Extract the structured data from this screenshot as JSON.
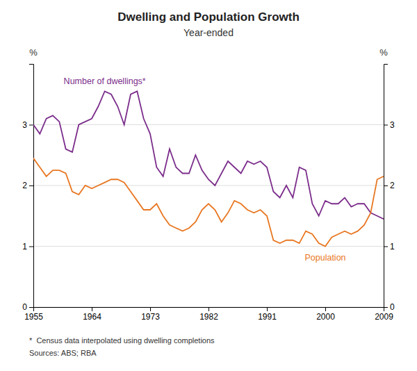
{
  "chart_data": {
    "type": "line",
    "title": "Dwelling and Population Growth",
    "subtitle": "Year-ended",
    "ylabel": "%",
    "y2label": "%",
    "footnotes": [
      "*  Census data interpolated using dwelling completions",
      "Sources: ABS; RBA"
    ],
    "x": [
      1955,
      1956,
      1957,
      1958,
      1959,
      1960,
      1961,
      1962,
      1963,
      1964,
      1965,
      1966,
      1967,
      1968,
      1969,
      1970,
      1971,
      1972,
      1973,
      1974,
      1975,
      1976,
      1977,
      1978,
      1979,
      1980,
      1981,
      1982,
      1983,
      1984,
      1985,
      1986,
      1987,
      1988,
      1989,
      1990,
      1991,
      1992,
      1993,
      1994,
      1995,
      1996,
      1997,
      1998,
      1999,
      2000,
      2001,
      2002,
      2003,
      2004,
      2005,
      2006,
      2007,
      2008,
      2009
    ],
    "series": [
      {
        "name": "Number of dwellings*",
        "color": "#7B2D8B",
        "values": [
          3.0,
          2.85,
          3.1,
          3.15,
          3.05,
          2.6,
          2.55,
          3.0,
          3.05,
          3.1,
          3.3,
          3.55,
          3.5,
          3.3,
          3.0,
          3.5,
          3.55,
          3.1,
          2.85,
          2.3,
          2.15,
          2.6,
          2.3,
          2.2,
          2.2,
          2.5,
          2.25,
          2.1,
          2.0,
          2.2,
          2.4,
          2.3,
          2.2,
          2.4,
          2.35,
          2.4,
          2.3,
          1.9,
          1.8,
          2.0,
          1.8,
          2.3,
          2.25,
          1.7,
          1.5,
          1.75,
          1.7,
          1.7,
          1.8,
          1.65,
          1.7,
          1.7,
          1.55,
          1.5,
          1.45
        ]
      },
      {
        "name": "Population",
        "color": "#E87722",
        "values": [
          2.45,
          2.3,
          2.15,
          2.25,
          2.25,
          2.2,
          1.9,
          1.85,
          2.0,
          1.95,
          2.0,
          2.05,
          2.1,
          2.1,
          2.05,
          1.9,
          1.75,
          1.6,
          1.6,
          1.7,
          1.5,
          1.35,
          1.3,
          1.25,
          1.3,
          1.4,
          1.6,
          1.7,
          1.6,
          1.4,
          1.55,
          1.75,
          1.7,
          1.6,
          1.55,
          1.6,
          1.5,
          1.1,
          1.05,
          1.1,
          1.1,
          1.05,
          1.25,
          1.2,
          1.05,
          1.0,
          1.15,
          1.2,
          1.25,
          1.2,
          1.25,
          1.35,
          1.55,
          2.1,
          2.15
        ]
      }
    ],
    "xlim": [
      1955,
      2009
    ],
    "xticks": [
      1955,
      1964,
      1973,
      1982,
      1991,
      2000,
      2009
    ],
    "ylim": [
      0,
      4
    ],
    "yticks": [
      0,
      1,
      2,
      3
    ],
    "y2lim": [
      0,
      4
    ],
    "y2ticks": [
      0,
      1,
      2,
      3
    ],
    "grid": true
  }
}
